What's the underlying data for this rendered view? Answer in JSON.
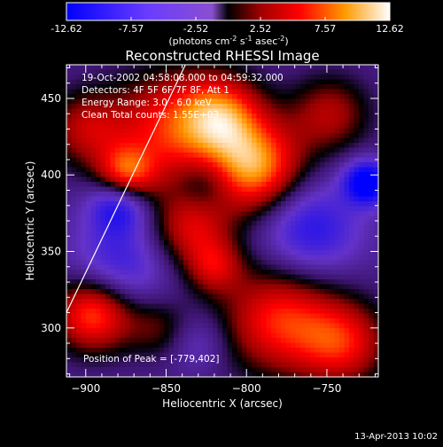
{
  "colorbar": {
    "ticks": [
      "-12.62",
      "-7.57",
      "-2.52",
      "2.52",
      "7.57",
      "12.62"
    ],
    "units_label": "(photons cm",
    "units_sup1": "-2",
    "units_mid": " s",
    "units_sup2": "-1",
    "units_end": " asec",
    "units_sup3": "-2",
    "units_close": ")",
    "min": -12.62,
    "max": 12.62
  },
  "chart_data": {
    "type": "heatmap",
    "title": "Reconstructed RHESSI Image",
    "xlabel": "Heliocentric X (arcsec)",
    "ylabel": "Heliocentric Y (arcsec)",
    "xlim": [
      -912,
      -718
    ],
    "ylim": [
      268,
      472
    ],
    "x_ticks": [
      -900,
      -850,
      -800,
      -750
    ],
    "y_ticks": [
      300,
      350,
      400,
      450
    ],
    "info_lines": [
      "19-Oct-2002 04:58:08.000 to 04:59:32.000",
      "Detectors: 4F 5F 6F 7F 8F, Att 1",
      "Energy Range: 3.0 - 6.0 keV",
      "Clean     Total counts: 1.55E+03"
    ],
    "peak_label": "Position of Peak = [-779,402]",
    "peak": [
      -779,
      402
    ],
    "limb_line": [
      [
        -912,
        310
      ],
      [
        -838,
        472
      ]
    ],
    "blobs": [
      {
        "x": -845,
        "y": 430,
        "v": 9,
        "r": 38
      },
      {
        "x": -795,
        "y": 405,
        "v": 12,
        "r": 30
      },
      {
        "x": -815,
        "y": 440,
        "v": 8,
        "r": 25
      },
      {
        "x": -875,
        "y": 400,
        "v": 9,
        "r": 18
      },
      {
        "x": -900,
        "y": 430,
        "v": 6,
        "r": 25
      },
      {
        "x": -895,
        "y": 310,
        "v": 11,
        "r": 25
      },
      {
        "x": -835,
        "y": 365,
        "v": 7,
        "r": 25
      },
      {
        "x": -855,
        "y": 300,
        "v": 4,
        "r": 20
      },
      {
        "x": -780,
        "y": 305,
        "v": 9,
        "r": 35
      },
      {
        "x": -740,
        "y": 290,
        "v": 8,
        "r": 28
      },
      {
        "x": -748,
        "y": 440,
        "v": 6,
        "r": 25
      },
      {
        "x": -820,
        "y": 340,
        "v": 6,
        "r": 18
      },
      {
        "x": -880,
        "y": 340,
        "v": -6,
        "r": 30
      },
      {
        "x": -880,
        "y": 380,
        "v": -8,
        "r": 18
      },
      {
        "x": -760,
        "y": 365,
        "v": -7,
        "r": 30
      },
      {
        "x": -725,
        "y": 395,
        "v": -12,
        "r": 14
      },
      {
        "x": -825,
        "y": 395,
        "v": -4,
        "r": 18
      },
      {
        "x": -830,
        "y": 290,
        "v": -3,
        "r": 18
      }
    ]
  },
  "footer": {
    "date": "13-Apr-2013 10:02"
  }
}
